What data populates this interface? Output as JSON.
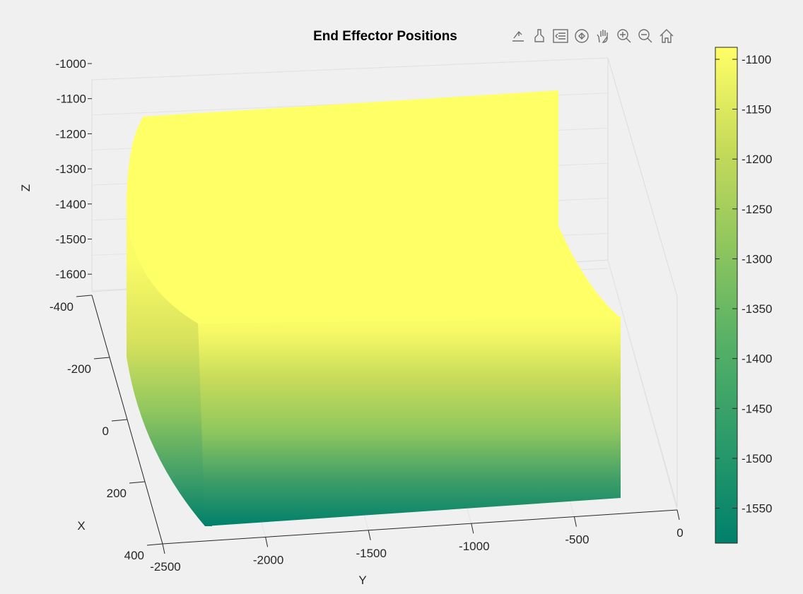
{
  "chart_data": {
    "type": "scatter3d",
    "title": "End Effector Positions",
    "xlabel": "X",
    "ylabel": "Y",
    "zlabel": "Z",
    "xlim": [
      -400,
      400
    ],
    "ylim": [
      -2500,
      0
    ],
    "zlim": [
      -1650,
      -1000
    ],
    "x_ticks": [
      "-400",
      "-200",
      "0",
      "200",
      "400"
    ],
    "y_ticks": [
      "-2500",
      "-2000",
      "-1500",
      "-1000",
      "-500",
      "0"
    ],
    "z_ticks": [
      "-1000",
      "-1100",
      "-1200",
      "-1300",
      "-1400",
      "-1500",
      "-1600"
    ],
    "grid": true,
    "colormap": [
      "#00806b",
      "#2a9a6a",
      "#55b066",
      "#8fc65e",
      "#c7db5a",
      "#ffff66"
    ],
    "colorbar": {
      "location": "right",
      "range": [
        -1585,
        -1088
      ],
      "ticks": [
        "-1100",
        "-1150",
        "-1200",
        "-1250",
        "-1300",
        "-1350",
        "-1400",
        "-1450",
        "-1500",
        "-1550"
      ]
    }
  },
  "toolbar": {
    "icons": [
      "export-icon",
      "brush-icon",
      "legend-icon",
      "rotate-icon",
      "pan-icon",
      "zoom-in-icon",
      "zoom-out-icon",
      "home-icon"
    ]
  }
}
